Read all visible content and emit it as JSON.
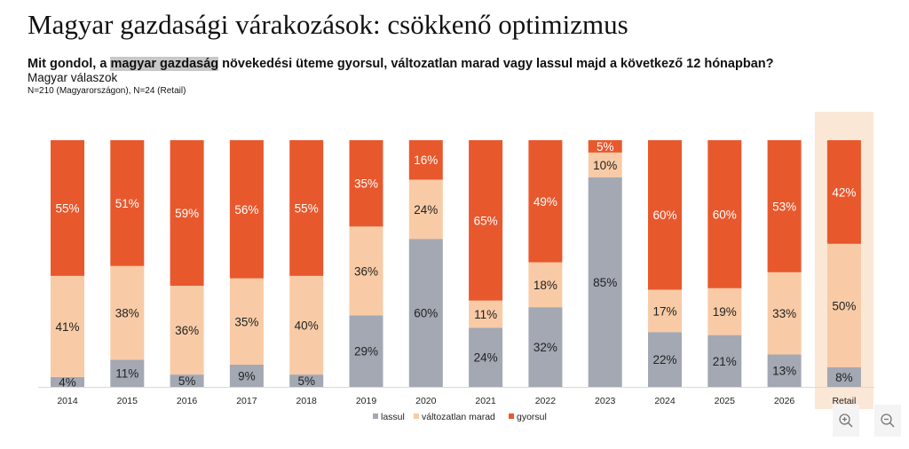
{
  "title": "Magyar gazdasági várakozások: csökkenő optimizmus",
  "question": {
    "before": "Mit gondol, a ",
    "highlight": "magyar gazdaság",
    "after": " növekedési üteme gyorsul, változatlan marad vagy lassul majd a következő 12 hónapban?"
  },
  "subtitle": "Magyar válaszok",
  "note": "N=210 (Magyarországon), N=24 (Retail)",
  "colors": {
    "lassul": "#a3a8b3",
    "valtozatlan": "#f8cba6",
    "gyorsul": "#e8582d",
    "retail_highlight": "#fbe7d6"
  },
  "chart_data": {
    "type": "bar",
    "stacked": true,
    "percent": true,
    "categories": [
      "2014",
      "2015",
      "2016",
      "2017",
      "2018",
      "2019",
      "2020",
      "2021",
      "2022",
      "2023",
      "2024",
      "2025",
      "2026",
      "Retail"
    ],
    "series": [
      {
        "name": "lassul",
        "values": [
          4,
          11,
          5,
          9,
          5,
          29,
          60,
          24,
          32,
          85,
          22,
          21,
          13,
          8
        ]
      },
      {
        "name": "változatlan marad",
        "values": [
          41,
          38,
          36,
          35,
          40,
          36,
          24,
          11,
          18,
          10,
          17,
          19,
          33,
          50
        ]
      },
      {
        "name": "gyorsul",
        "values": [
          55,
          51,
          59,
          56,
          55,
          35,
          16,
          65,
          49,
          5,
          60,
          60,
          53,
          42
        ]
      }
    ],
    "highlighted_category": "Retail",
    "legend_position": "bottom",
    "ylim": [
      0,
      100
    ]
  },
  "controls": {
    "zoom_in": "zoom-in",
    "zoom_out": "zoom-out"
  }
}
